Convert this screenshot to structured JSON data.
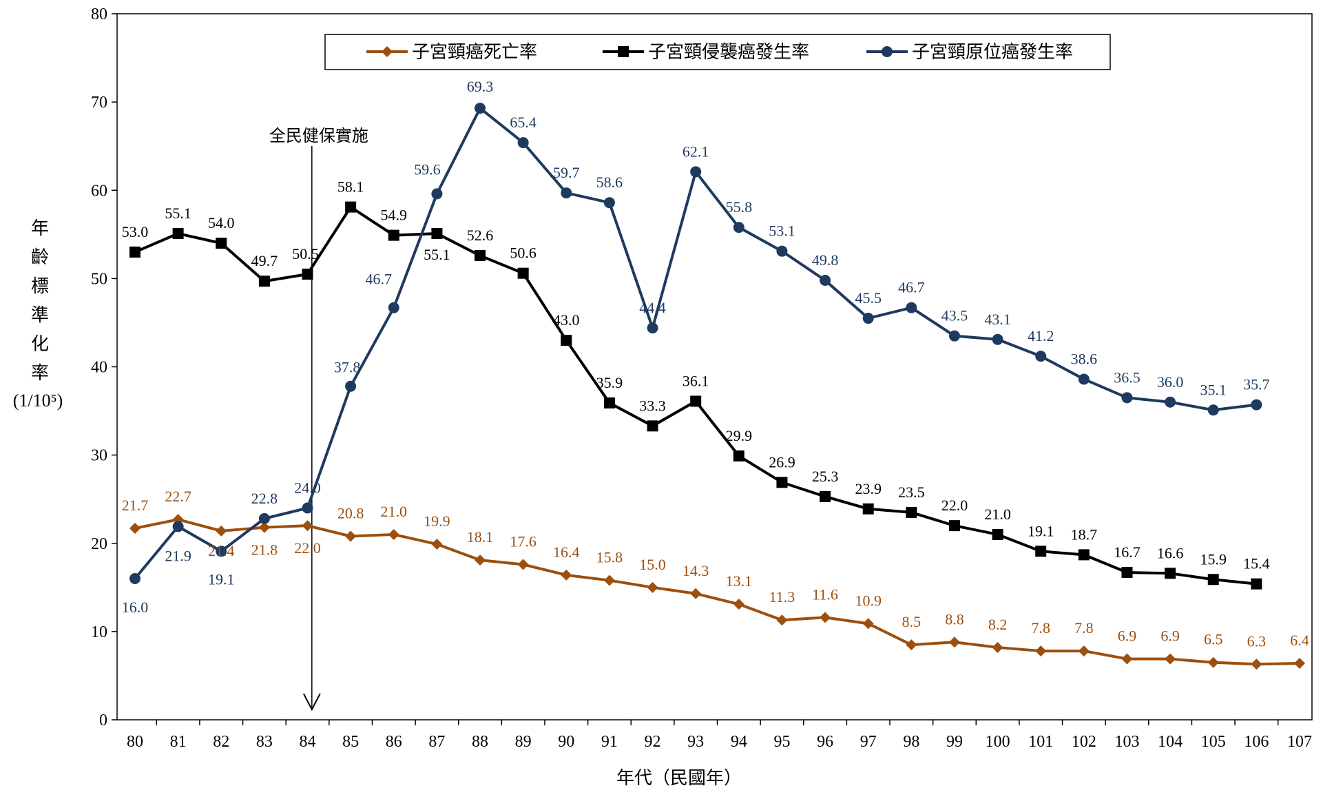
{
  "chart_data": {
    "type": "line",
    "title": "",
    "xlabel": "年代（民國年）",
    "ylabel_chars": [
      "年",
      "齡",
      "標",
      "準",
      "化",
      "率"
    ],
    "ylabel_unit": "(1/10⁵)",
    "ylim": [
      0,
      80
    ],
    "yticks": [
      0,
      10,
      20,
      30,
      40,
      50,
      60,
      70,
      80
    ],
    "grid": false,
    "legend_position": "top",
    "categories": [
      "80",
      "81",
      "82",
      "83",
      "84",
      "85",
      "86",
      "87",
      "88",
      "89",
      "90",
      "91",
      "92",
      "93",
      "94",
      "95",
      "96",
      "97",
      "98",
      "99",
      "100",
      "101",
      "102",
      "103",
      "104",
      "105",
      "106",
      "107"
    ],
    "series": [
      {
        "name": "子宮頸癌死亡率",
        "color": "#9c4f0e",
        "marker": "diamond",
        "values": [
          21.7,
          22.7,
          21.4,
          21.8,
          22.0,
          20.8,
          21.0,
          19.9,
          18.1,
          17.6,
          16.4,
          15.8,
          15.0,
          14.3,
          13.1,
          11.3,
          11.6,
          10.9,
          8.5,
          8.8,
          8.2,
          7.8,
          7.8,
          6.9,
          6.9,
          6.5,
          6.3,
          6.4
        ]
      },
      {
        "name": "子宮頸侵襲癌發生率",
        "color": "#000000",
        "marker": "square",
        "values": [
          53.0,
          55.1,
          54.0,
          49.7,
          50.5,
          58.1,
          54.9,
          55.1,
          52.6,
          50.6,
          43.0,
          35.9,
          33.3,
          36.1,
          29.9,
          26.9,
          25.3,
          23.9,
          23.5,
          22.0,
          21.0,
          19.1,
          18.7,
          16.7,
          16.6,
          15.9,
          15.4,
          null
        ]
      },
      {
        "name": "子宮頸原位癌發生率",
        "color": "#1f3a5f",
        "marker": "circle",
        "values": [
          16.0,
          21.9,
          19.1,
          22.8,
          24.0,
          37.8,
          46.7,
          59.6,
          69.3,
          65.4,
          59.7,
          58.6,
          44.4,
          62.1,
          55.8,
          53.1,
          49.8,
          45.5,
          46.7,
          43.5,
          43.1,
          41.2,
          38.6,
          36.5,
          36.0,
          35.1,
          35.7,
          null
        ]
      }
    ],
    "annotation": {
      "text": "全民健保實施",
      "x_between": [
        "84",
        "85"
      ]
    }
  }
}
